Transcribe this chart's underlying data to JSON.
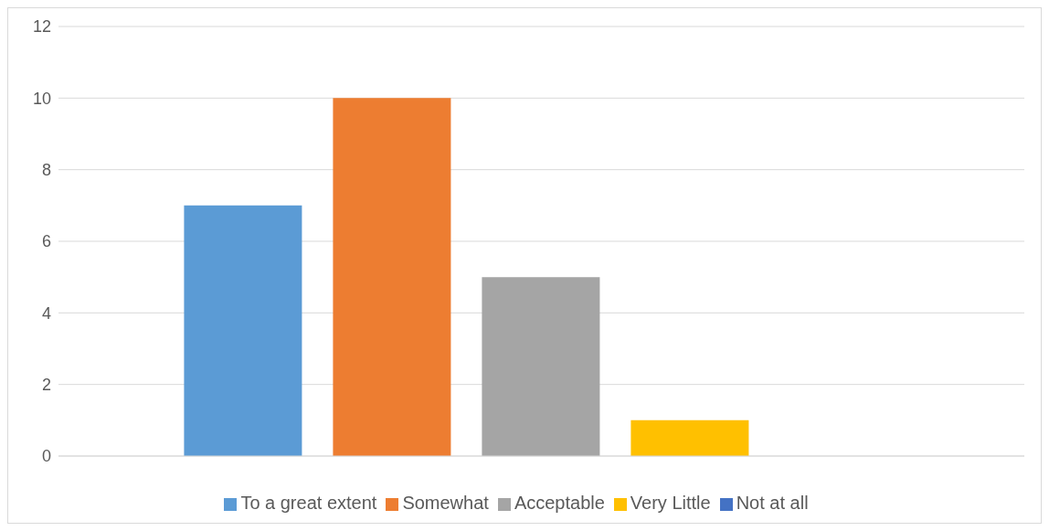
{
  "chart_data": {
    "type": "bar",
    "categories": [
      null
    ],
    "series": [
      {
        "name": "To a great extent",
        "color": "#5b9bd5",
        "values": [
          7
        ]
      },
      {
        "name": "Somewhat",
        "color": "#ed7d31",
        "values": [
          10
        ]
      },
      {
        "name": "Acceptable",
        "color": "#a5a5a5",
        "values": [
          5
        ]
      },
      {
        "name": "Very Little",
        "color": "#ffc000",
        "values": [
          1
        ]
      },
      {
        "name": "Not at all",
        "color": "#4472c4",
        "values": [
          0
        ]
      }
    ],
    "ylim": [
      0,
      12
    ],
    "yticks": [
      0,
      2,
      4,
      6,
      8,
      10,
      12
    ],
    "grid": "y",
    "legend": "bottom"
  }
}
